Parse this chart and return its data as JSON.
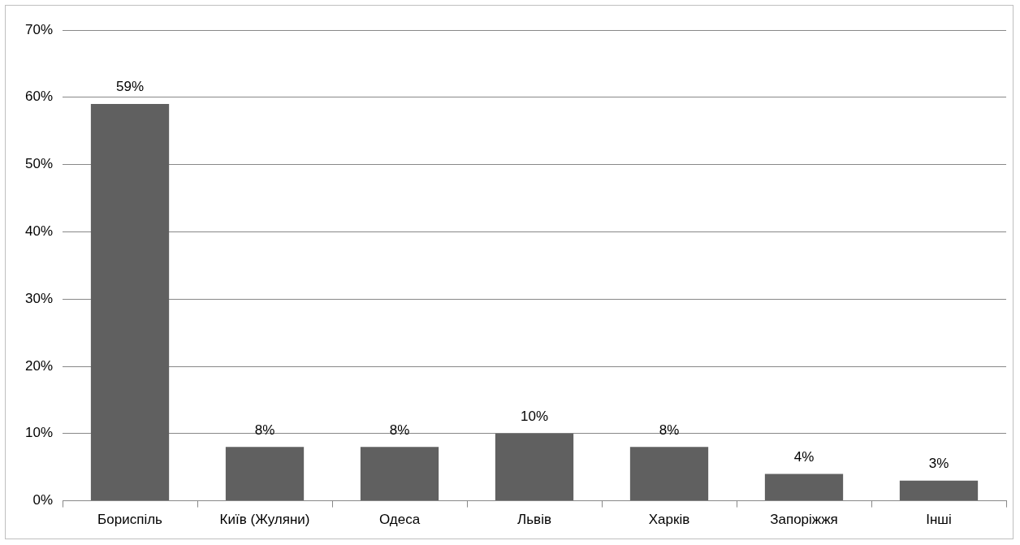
{
  "chart_data": {
    "type": "bar",
    "categories": [
      "Бориспіль",
      "Київ (Жуляни)",
      "Одеса",
      "Львів",
      "Харків",
      "Запоріжжя",
      "Інші"
    ],
    "values": [
      59,
      8,
      8,
      10,
      8,
      4,
      3
    ],
    "value_labels": [
      "59%",
      "8%",
      "8%",
      "10%",
      "8%",
      "4%",
      "3%"
    ],
    "color": "#606060",
    "ylim": [
      0,
      70
    ],
    "yticks": [
      {
        "value": 0,
        "label": "0%"
      },
      {
        "value": 10,
        "label": "10%"
      },
      {
        "value": 20,
        "label": "20%"
      },
      {
        "value": 30,
        "label": "30%"
      },
      {
        "value": 40,
        "label": "40%"
      },
      {
        "value": 50,
        "label": "50%"
      },
      {
        "value": 60,
        "label": "60%"
      },
      {
        "value": 70,
        "label": "70%"
      }
    ],
    "grid": "y",
    "legend": false
  }
}
